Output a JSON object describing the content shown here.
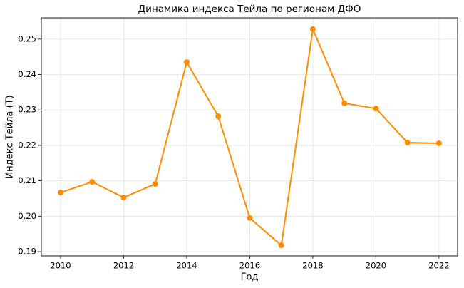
{
  "chart_data": {
    "type": "line",
    "title": "Динамика индекса Тейла по регионам ДФО",
    "xlabel": "Год",
    "ylabel": "Индекс Тейла (T)",
    "x": [
      2010,
      2011,
      2012,
      2013,
      2014,
      2015,
      2016,
      2017,
      2018,
      2019,
      2020,
      2021,
      2022
    ],
    "series": [
      {
        "name": "Индекс Тейла",
        "color": "#ff8c00",
        "values": [
          0.2067,
          0.2097,
          0.2053,
          0.2091,
          0.2435,
          0.2282,
          0.1995,
          0.1918,
          0.2528,
          0.2319,
          0.2304,
          0.2208,
          0.2206
        ]
      }
    ],
    "xlim": [
      2009.39,
      2022.59
    ],
    "xticks": [
      2010,
      2012,
      2014,
      2016,
      2018,
      2020,
      2022
    ],
    "ylim": [
      0.1888,
      0.256
    ],
    "yticks": [
      0.19,
      {
        "value": 0.2,
        "label": "0.20"
      },
      0.21,
      0.22,
      0.23,
      0.24,
      0.25
    ],
    "grid": true
  }
}
